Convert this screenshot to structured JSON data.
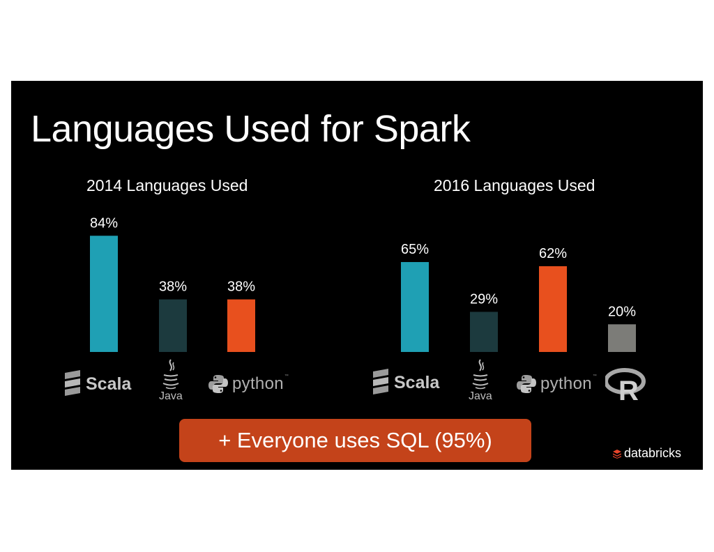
{
  "slide": {
    "title": "Languages Used for Spark",
    "callout": "+ Everyone uses SQL (95%)",
    "brand": "databricks",
    "brand_color": "#e8442a",
    "background": "#000000"
  },
  "logos": {
    "scala": "Scala",
    "java": "Java",
    "python": "python",
    "r": "R",
    "scala_icon": "scala-logo-icon",
    "java_icon": "java-cup-icon",
    "python_icon": "python-snake-icon",
    "r_icon": "r-logo-icon"
  },
  "chart_data": [
    {
      "type": "bar",
      "title": "2014 Languages Used",
      "categories": [
        "Scala",
        "Java",
        "Python"
      ],
      "values": [
        84,
        38,
        38
      ],
      "labels": [
        "84%",
        "38%",
        "38%"
      ],
      "colors": [
        "#1fa0b4",
        "#1c3a3e",
        "#e8501e"
      ],
      "ylim": [
        0,
        100
      ],
      "grid": false
    },
    {
      "type": "bar",
      "title": "2016 Languages Used",
      "categories": [
        "Scala",
        "Java",
        "Python",
        "R"
      ],
      "values": [
        65,
        29,
        62,
        20
      ],
      "labels": [
        "65%",
        "29%",
        "62%",
        "20%"
      ],
      "colors": [
        "#1fa0b4",
        "#1c3a3e",
        "#e8501e",
        "#7c7c78"
      ],
      "ylim": [
        0,
        100
      ],
      "grid": false
    }
  ]
}
